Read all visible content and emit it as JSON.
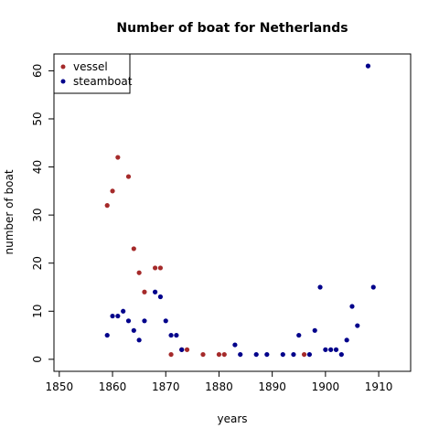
{
  "chart_data": {
    "type": "scatter",
    "title": "Number of boat for Netherlands",
    "xlabel": "years",
    "ylabel": "number of boat",
    "xlim": [
      1849,
      1916
    ],
    "ylim": [
      -2.5,
      63.5
    ],
    "xticks": [
      1850,
      1860,
      1870,
      1880,
      1890,
      1900,
      1910
    ],
    "yticks": [
      0,
      10,
      20,
      30,
      40,
      50,
      60
    ],
    "grid": false,
    "legend": "top-left",
    "series": [
      {
        "name": "vessel",
        "color": "#A52A2A",
        "points": [
          [
            1859,
            32
          ],
          [
            1860,
            35
          ],
          [
            1861,
            42
          ],
          [
            1863,
            38
          ],
          [
            1864,
            23
          ],
          [
            1865,
            18
          ],
          [
            1866,
            14
          ],
          [
            1868,
            19
          ],
          [
            1869,
            19
          ],
          [
            1871,
            1
          ],
          [
            1873,
            2
          ],
          [
            1874,
            2
          ],
          [
            1877,
            1
          ],
          [
            1880,
            1
          ],
          [
            1881,
            1
          ],
          [
            1896,
            1
          ]
        ]
      },
      {
        "name": "steamboat",
        "color": "#00008B",
        "points": [
          [
            1859,
            5
          ],
          [
            1860,
            9
          ],
          [
            1861,
            9
          ],
          [
            1862,
            10
          ],
          [
            1863,
            8
          ],
          [
            1864,
            6
          ],
          [
            1865,
            4
          ],
          [
            1866,
            8
          ],
          [
            1868,
            14
          ],
          [
            1869,
            13
          ],
          [
            1870,
            8
          ],
          [
            1871,
            5
          ],
          [
            1872,
            5
          ],
          [
            1873,
            2
          ],
          [
            1883,
            3
          ],
          [
            1884,
            1
          ],
          [
            1887,
            1
          ],
          [
            1889,
            1
          ],
          [
            1892,
            1
          ],
          [
            1894,
            1
          ],
          [
            1895,
            5
          ],
          [
            1897,
            1
          ],
          [
            1898,
            6
          ],
          [
            1899,
            15
          ],
          [
            1900,
            2
          ],
          [
            1901,
            2
          ],
          [
            1902,
            2
          ],
          [
            1903,
            1
          ],
          [
            1904,
            4
          ],
          [
            1905,
            11
          ],
          [
            1906,
            7
          ],
          [
            1908,
            61
          ],
          [
            1909,
            15
          ]
        ]
      }
    ]
  }
}
